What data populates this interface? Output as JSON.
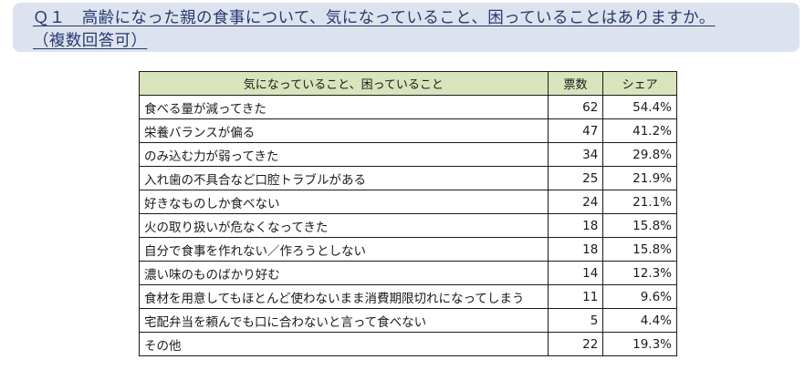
{
  "question": {
    "line1": "Ｑ１　高齢になった親の食事について、気になっていること、困っていることはありますか。",
    "line2": "（複数回答可）"
  },
  "table": {
    "headers": [
      "気になっていること、困っていること",
      "票数",
      "シェア"
    ],
    "rows": [
      {
        "item": "食べる量が減ってきた",
        "votes": "62",
        "share": "54.4%"
      },
      {
        "item": "栄養バランスが偏る",
        "votes": "47",
        "share": "41.2%"
      },
      {
        "item": "のみ込む力が弱ってきた",
        "votes": "34",
        "share": "29.8%"
      },
      {
        "item": "入れ歯の不具合など口腔トラブルがある",
        "votes": "25",
        "share": "21.9%"
      },
      {
        "item": "好きなものしか食べない",
        "votes": "24",
        "share": "21.1%"
      },
      {
        "item": "火の取り扱いが危なくなってきた",
        "votes": "18",
        "share": "15.8%"
      },
      {
        "item": "自分で食事を作れない／作ろうとしない",
        "votes": "18",
        "share": "15.8%"
      },
      {
        "item": "濃い味のものばかり好む",
        "votes": "14",
        "share": "12.3%"
      },
      {
        "item": "食材を用意してもほとんど使わないまま消費期限切れになってしまう",
        "votes": "11",
        "share": "9.6%"
      },
      {
        "item": "宅配弁当を頼んでも口に合わないと言って食べない",
        "votes": "5",
        "share": "4.4%"
      },
      {
        "item": "その他",
        "votes": "22",
        "share": "19.3%"
      }
    ]
  },
  "colors": {
    "header_bg": "#d8e4bc",
    "question_bg": "#dde3ee",
    "question_text": "#253a6e"
  }
}
